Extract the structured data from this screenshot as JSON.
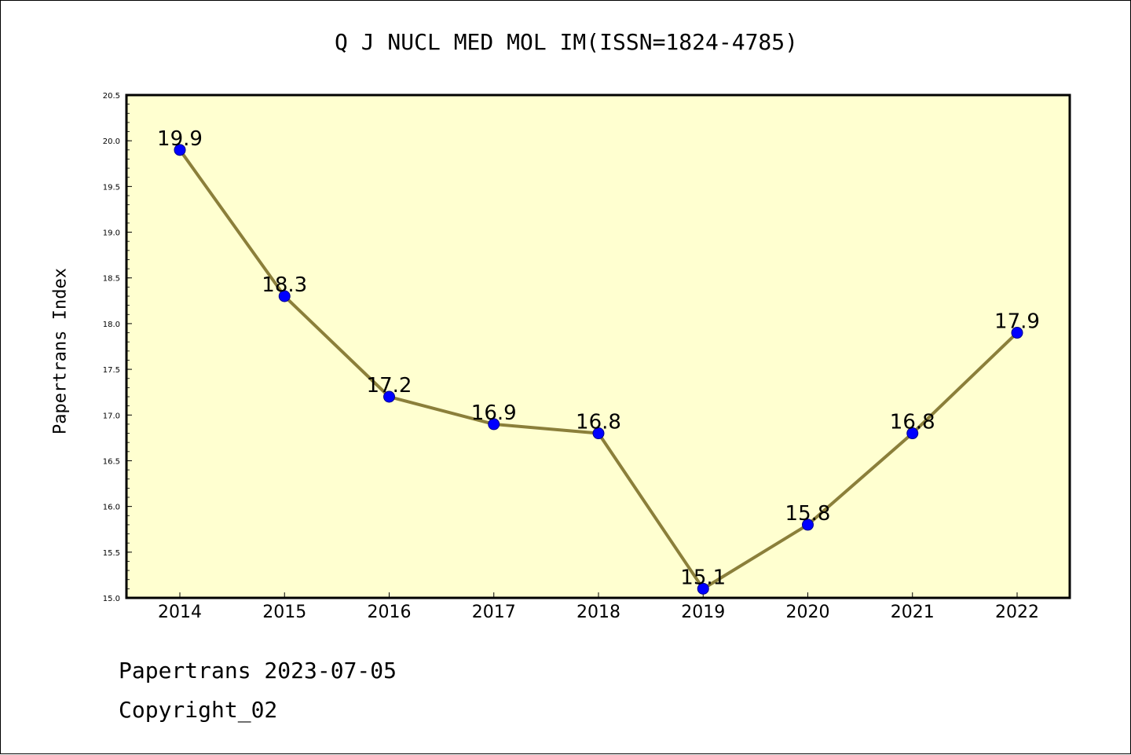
{
  "chart_data": {
    "type": "line",
    "title": "Q J NUCL MED MOL IM(ISSN=1824-4785)",
    "xlabel": "",
    "ylabel": "Papertrans Index",
    "x": [
      "2014",
      "2015",
      "2016",
      "2017",
      "2018",
      "2019",
      "2020",
      "2021",
      "2022"
    ],
    "series": [
      {
        "values": [
          19.9,
          18.3,
          17.2,
          16.9,
          16.8,
          15.1,
          15.8,
          16.8,
          17.9
        ]
      }
    ],
    "data_labels": [
      "19.9",
      "18.3",
      "17.2",
      "16.9",
      "16.8",
      "15.1",
      "15.8",
      "16.8",
      "17.9"
    ],
    "ylim": [
      15.0,
      20.5
    ],
    "yticks": [
      "15.0",
      "15.5",
      "16.0",
      "16.5",
      "17.0",
      "17.5",
      "18.0",
      "18.5",
      "19.0",
      "19.5",
      "20.0",
      "20.5"
    ],
    "grid": false,
    "colors": {
      "plot_background": "#ffffd0",
      "line": "#8b7f3a",
      "marker": "#0000ff"
    }
  },
  "footer": {
    "date": "Papertrans 2023-07-05",
    "copyright": "Copyright_02"
  }
}
